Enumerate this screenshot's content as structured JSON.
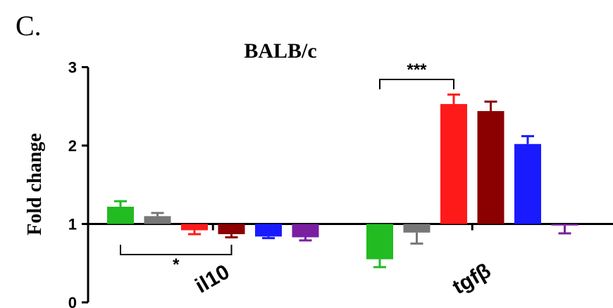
{
  "panel_label": "C.",
  "chart_data": {
    "type": "bar",
    "title": "BALB/c",
    "ylabel": "Fold change",
    "xlabel": "",
    "ylim": [
      0,
      3
    ],
    "yticks": [
      "0",
      "1",
      "2",
      "3"
    ],
    "baseline": 1,
    "grid": false,
    "legend": "none",
    "categories": [
      "il10",
      "tgfβ"
    ],
    "series": [
      {
        "color": "#22bb22",
        "values": [
          1.22,
          0.55
        ],
        "errors": [
          0.07,
          0.1
        ]
      },
      {
        "color": "#777777",
        "values": [
          1.1,
          0.89
        ],
        "errors": [
          0.04,
          0.14
        ]
      },
      {
        "color": "#ff1a1a",
        "values": [
          0.92,
          2.53
        ],
        "errors": [
          0.05,
          0.12
        ]
      },
      {
        "color": "#8b0000",
        "values": [
          0.87,
          2.44
        ],
        "errors": [
          0.04,
          0.12
        ]
      },
      {
        "color": "#1a1aff",
        "values": [
          0.84,
          2.02
        ],
        "errors": [
          0.02,
          0.1
        ]
      },
      {
        "color": "#7a1fa2",
        "values": [
          0.83,
          0.98
        ],
        "errors": [
          0.04,
          0.1
        ]
      }
    ],
    "significance": [
      {
        "label": "*",
        "category": "il10",
        "from_series": 0,
        "to_series": 3,
        "position": "below"
      },
      {
        "label": "***",
        "category": "tgfβ",
        "from_series": 0,
        "to_series": 2,
        "position": "above"
      }
    ]
  }
}
